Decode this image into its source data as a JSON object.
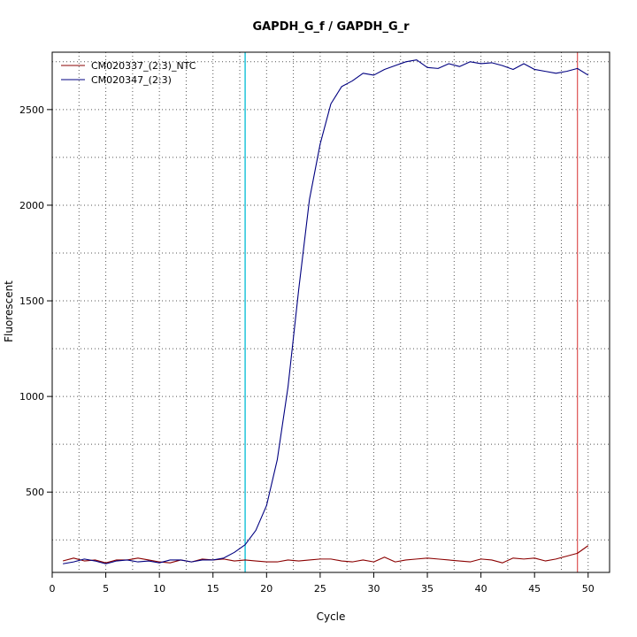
{
  "chart_data": {
    "type": "line",
    "title": "GAPDH_G_f / GAPDH_G_r",
    "xlabel": "Cycle",
    "ylabel": "Fluorescent",
    "xlim": [
      0,
      52
    ],
    "ylim": [
      80,
      2800
    ],
    "x_ticks": [
      0,
      5,
      10,
      15,
      20,
      25,
      30,
      35,
      40,
      45,
      50
    ],
    "x_tick_labels": [
      "0",
      "5",
      "10",
      "15",
      "20",
      "25",
      "30",
      "35",
      "40",
      "45",
      "50"
    ],
    "y_ticks": [
      500,
      1000,
      1500,
      2000,
      2500
    ],
    "y_tick_labels": [
      "500",
      "1000",
      "1500",
      "2000",
      "2500"
    ],
    "grid": true,
    "legend_position": "top-left",
    "vlines": [
      {
        "x": 18,
        "color": "#00bcd4"
      },
      {
        "x": 49,
        "color": "#e06060"
      }
    ],
    "series": [
      {
        "name": "CM020337_(2:3)_NTC",
        "color": "#8b0000",
        "x": [
          1,
          2,
          3,
          4,
          5,
          6,
          7,
          8,
          9,
          10,
          11,
          12,
          13,
          14,
          15,
          16,
          17,
          18,
          19,
          20,
          21,
          22,
          23,
          24,
          25,
          26,
          27,
          28,
          29,
          30,
          31,
          32,
          33,
          34,
          35,
          36,
          37,
          38,
          39,
          40,
          41,
          42,
          43,
          44,
          45,
          46,
          47,
          48,
          49,
          50
        ],
        "values": [
          140,
          155,
          140,
          145,
          130,
          145,
          145,
          155,
          145,
          135,
          130,
          145,
          135,
          150,
          145,
          150,
          140,
          145,
          140,
          135,
          135,
          145,
          140,
          145,
          150,
          150,
          140,
          135,
          145,
          135,
          160,
          135,
          145,
          150,
          155,
          150,
          145,
          140,
          135,
          150,
          145,
          130,
          155,
          150,
          155,
          140,
          150,
          165,
          180,
          220
        ]
      },
      {
        "name": "CM020347_(2:3)",
        "color": "#000080",
        "x": [
          1,
          2,
          3,
          4,
          5,
          6,
          7,
          8,
          9,
          10,
          11,
          12,
          13,
          14,
          15,
          16,
          17,
          18,
          19,
          20,
          21,
          22,
          23,
          24,
          25,
          26,
          27,
          28,
          29,
          30,
          31,
          32,
          33,
          34,
          35,
          36,
          37,
          38,
          39,
          40,
          41,
          42,
          43,
          44,
          45,
          46,
          47,
          48,
          49,
          50
        ],
        "values": [
          125,
          135,
          150,
          140,
          125,
          140,
          145,
          135,
          140,
          130,
          145,
          145,
          135,
          145,
          145,
          155,
          185,
          225,
          300,
          430,
          670,
          1050,
          1560,
          2030,
          2320,
          2530,
          2620,
          2650,
          2690,
          2680,
          2710,
          2730,
          2750,
          2760,
          2720,
          2715,
          2740,
          2725,
          2750,
          2740,
          2745,
          2730,
          2710,
          2740,
          2710,
          2700,
          2690,
          2700,
          2715,
          2680
        ]
      }
    ]
  }
}
